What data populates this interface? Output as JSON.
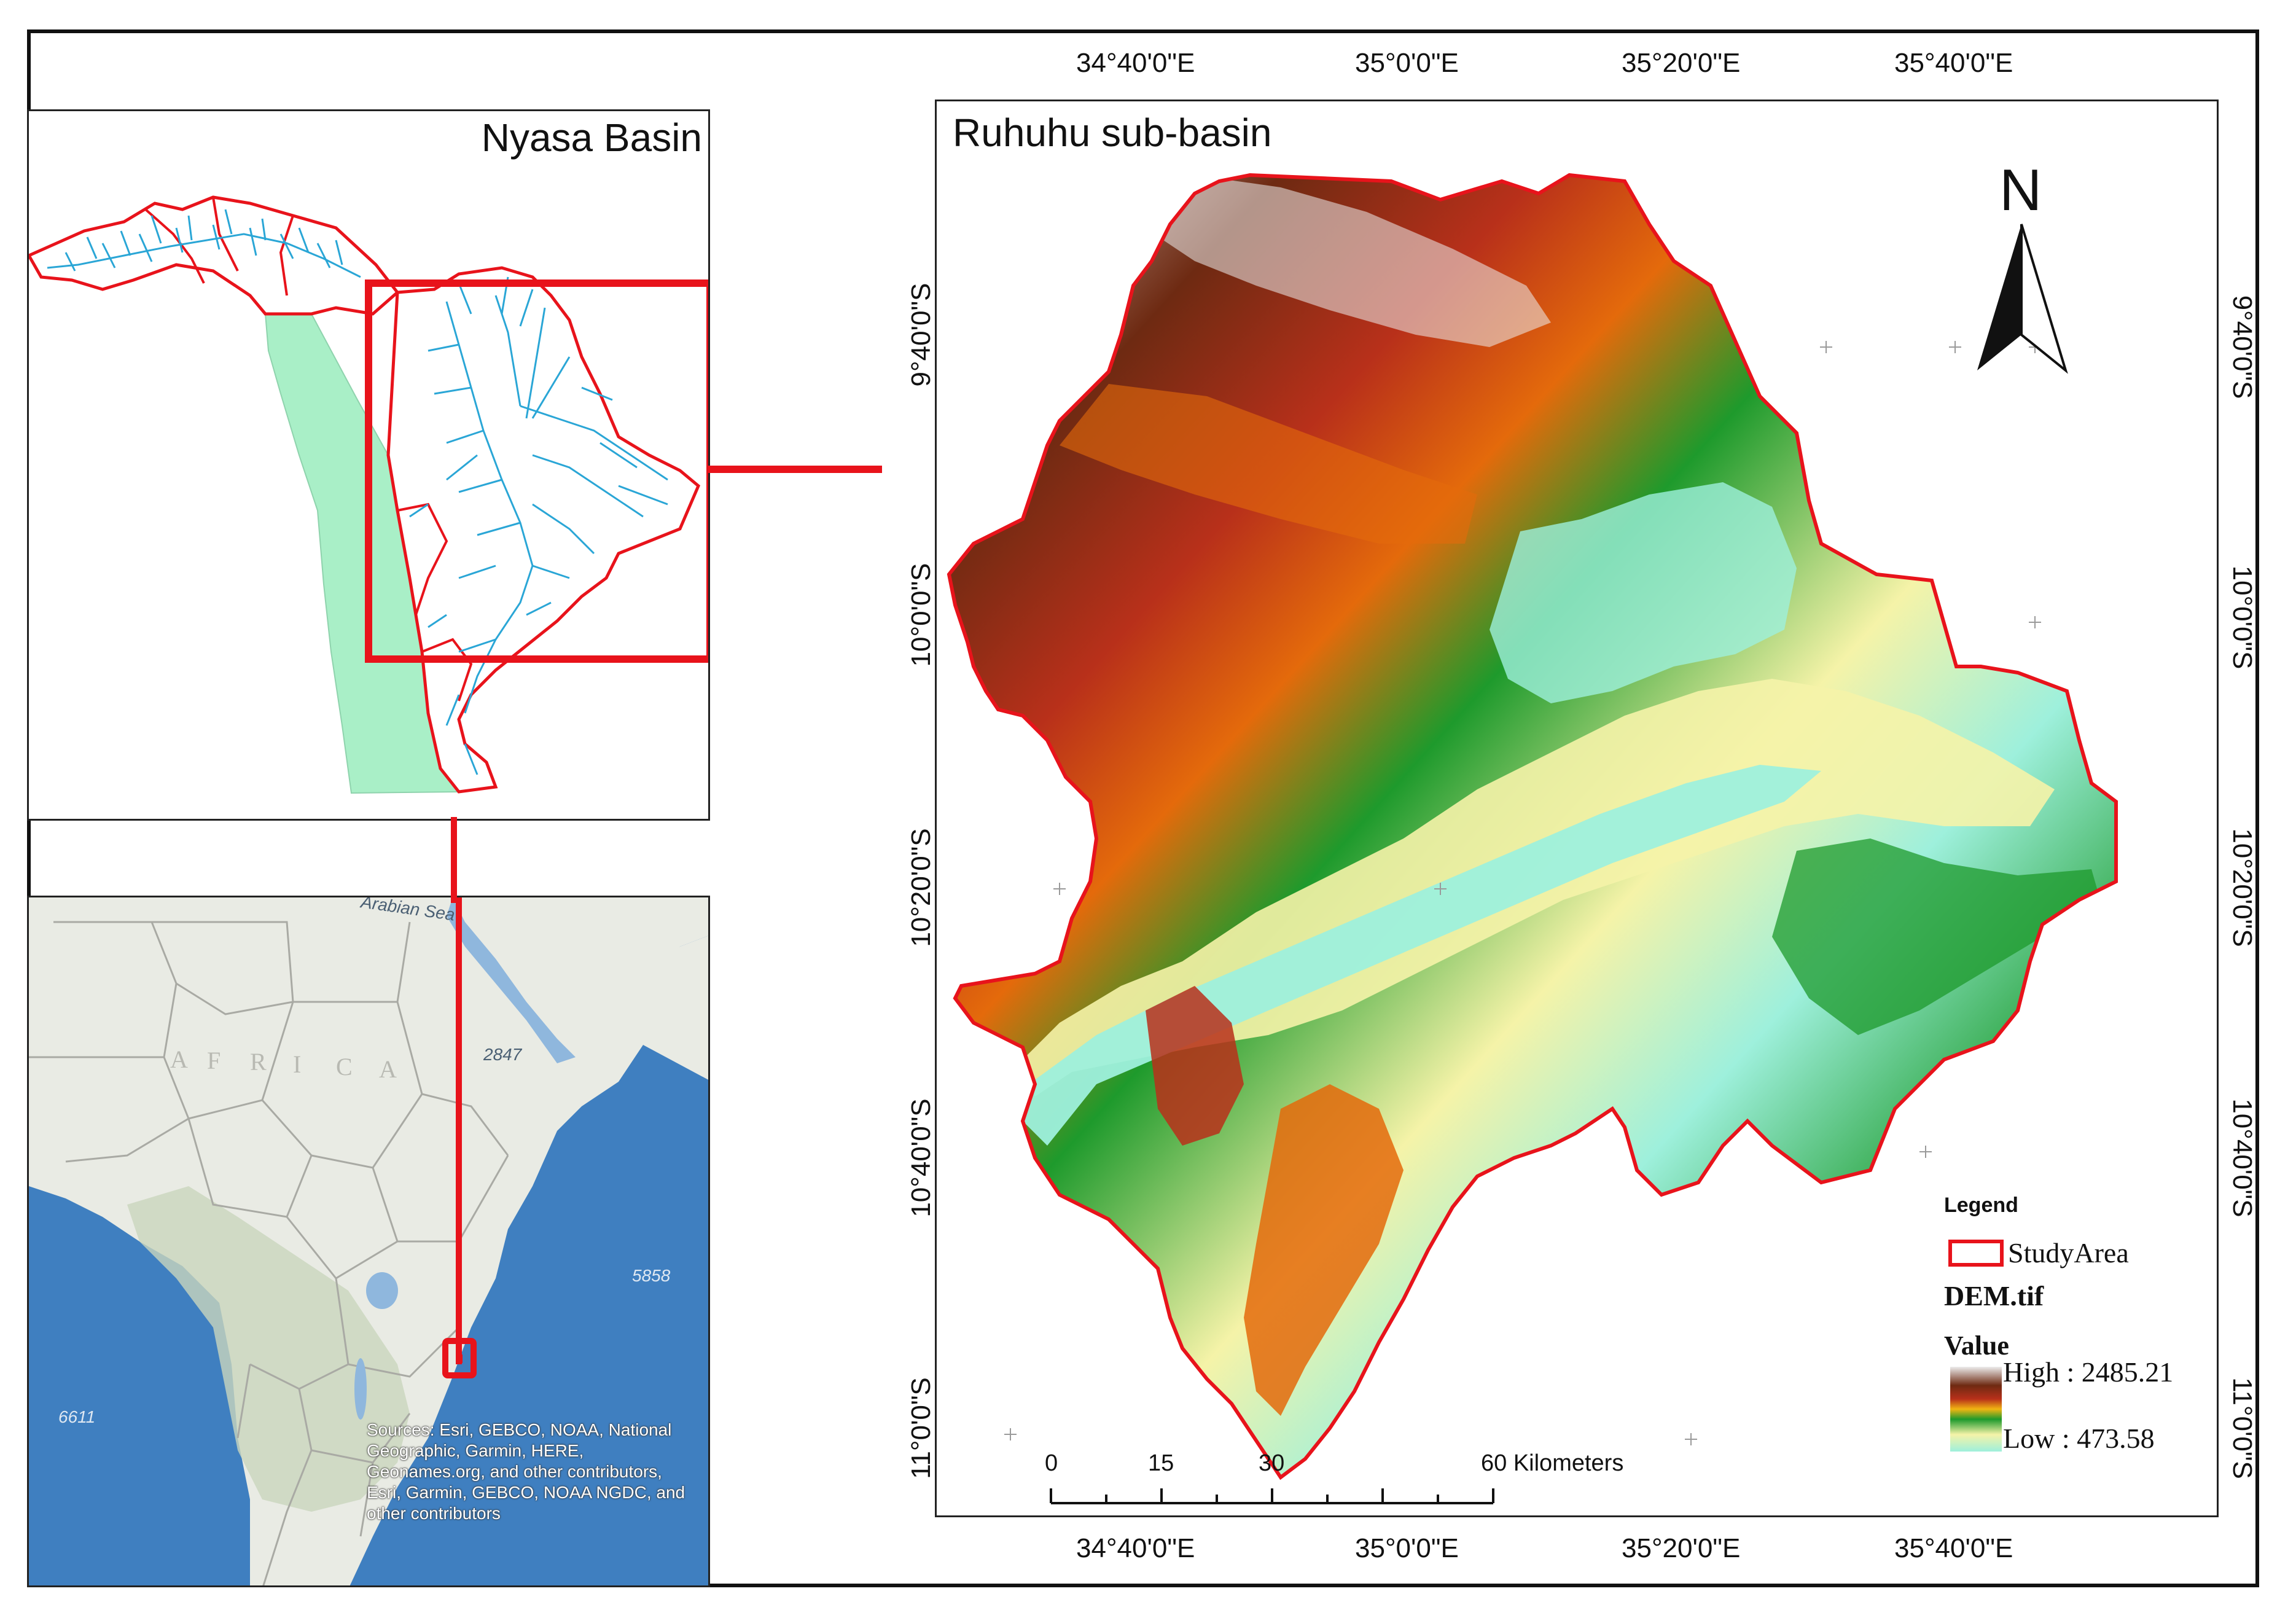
{
  "inset_top": {
    "title": "Nyasa Basin",
    "colors": {
      "boundary": "#e8131b",
      "rivers": "#2aa6d6",
      "lake": "#a9efc7",
      "highlight_box": "#e8131b"
    }
  },
  "inset_bottom": {
    "continent_label": [
      "A",
      "F",
      "R",
      "I",
      "C",
      "A"
    ],
    "sea_label": "Arabian Sea",
    "depth_labels": [
      "2847",
      "5858",
      "6611"
    ],
    "attribution": "Sources: Esri, GEBCO, NOAA, National Geographic, Garmin, HERE, Geonames.org, and other contributors, Esri, Garmin, GEBCO, NOAA NGDC, and other contributors",
    "colors": {
      "land": "#e9ebe4",
      "ocean": "#3f7fc0",
      "marker": "#e8131b"
    }
  },
  "main_map": {
    "title": "Ruhuhu sub-basin",
    "north_label": "N",
    "top_coords": [
      "34°40'0\"E",
      "35°0'0\"E",
      "35°20'0\"E",
      "35°40'0\"E"
    ],
    "bottom_coords": [
      "34°40'0\"E",
      "35°0'0\"E",
      "35°20'0\"E",
      "35°40'0\"E"
    ],
    "left_coords": [
      "9°40'0\"S",
      "10°0'0\"S",
      "10°20'0\"S",
      "10°40'0\"S",
      "11°0'0\"S"
    ],
    "right_coords": [
      "9°40'0\"S",
      "10°0'0\"S",
      "10°20'0\"S",
      "10°40'0\"S",
      "11°0'0\"S"
    ],
    "scale_bar": {
      "ticks": [
        "0",
        "15",
        "30",
        "60 Kilometers"
      ]
    },
    "legend": {
      "title": "Legend",
      "study_area": "StudyArea",
      "layer": "DEM.tif",
      "value_label": "Value",
      "high": "High : 2485.21",
      "low": "Low : 473.58",
      "high_value": 2485.21,
      "low_value": 473.58
    },
    "colors": {
      "boundary": "#e8131b",
      "dem_ramp": [
        "#9ef0dc",
        "#d8f6b0",
        "#f5f3a8",
        "#1e9a2c",
        "#f1b512",
        "#e46a0b",
        "#b8301a",
        "#6e2a12",
        "#ececec"
      ]
    }
  }
}
